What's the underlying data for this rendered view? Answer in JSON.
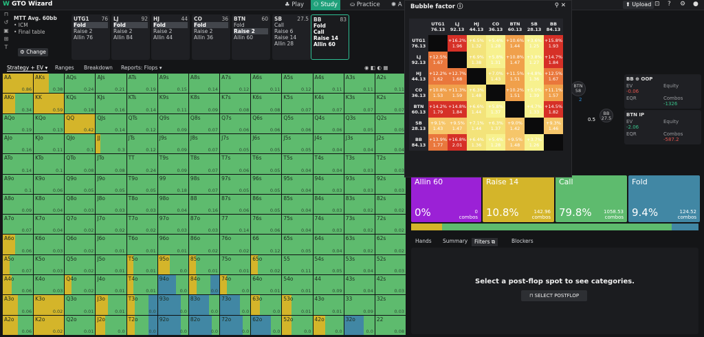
{
  "app": {
    "logo": "GTO Wizard",
    "tabs": [
      "Play",
      "Study",
      "Practice",
      "A"
    ],
    "upload": "Upload"
  },
  "mtt": {
    "title": "MTT  Avg. 60bb",
    "b1": "• ICM",
    "b2": "• Final table",
    "change": "Change"
  },
  "positions": [
    {
      "name": "UTG1",
      "stack": "76",
      "acts": [
        "Fold",
        "Raise 2",
        "Allin 76"
      ],
      "sel": 0
    },
    {
      "name": "LJ",
      "stack": "92",
      "acts": [
        "Fold",
        "Raise 2",
        "Allin 84"
      ],
      "sel": 0
    },
    {
      "name": "HJ",
      "stack": "44",
      "acts": [
        "Fold",
        "Raise 2",
        "Allin 44"
      ],
      "sel": 0
    },
    {
      "name": "CO",
      "stack": "36",
      "acts": [
        "Fold",
        "Raise 2",
        "Allin 36"
      ],
      "sel": 0
    },
    {
      "name": "BTN",
      "stack": "60",
      "acts": [
        "Fold",
        "Raise 2",
        "Allin 60"
      ],
      "sel": 1
    },
    {
      "name": "SB",
      "stack": "27.5",
      "acts": [
        "Call",
        "Raise 6",
        "Raise 14",
        "Allin 28"
      ],
      "sel": -1
    },
    {
      "name": "BB",
      "stack": "83",
      "acts": [
        "Fold",
        "Call",
        "Raise 14",
        "Allin 60"
      ],
      "sel": -1
    }
  ],
  "strategy_tabs": [
    "Strategy + EV ▾",
    "Ranges",
    "Breakdown",
    "Reports: Flops ▾"
  ],
  "grid": [
    [
      "AA",
      "0.86",
      "y1"
    ],
    [
      "AKs",
      "0.38",
      "y5"
    ],
    [
      "AQs",
      "0.24",
      ""
    ],
    [
      "AJs",
      "0.21",
      ""
    ],
    [
      "ATs",
      "0.19",
      ""
    ],
    [
      "A9s",
      "0.15",
      ""
    ],
    [
      "A8s",
      "0.14",
      ""
    ],
    [
      "A7s",
      "0.12",
      ""
    ],
    [
      "A6s",
      "0.11",
      ""
    ],
    [
      "A5s",
      "0.12",
      ""
    ],
    [
      "A4s",
      "0.11",
      ""
    ],
    [
      "A3s",
      "0.11",
      ""
    ],
    [
      "A2s",
      "0.11",
      ""
    ],
    [
      "AKo",
      "0.34",
      "y4"
    ],
    [
      "KK",
      "0.59",
      "y1"
    ],
    [
      "KQs",
      "0.18",
      ""
    ],
    [
      "KJs",
      "0.16",
      ""
    ],
    [
      "KTs",
      "0.14",
      ""
    ],
    [
      "K9s",
      "0.11",
      ""
    ],
    [
      "K8s",
      "0.09",
      ""
    ],
    [
      "K7s",
      "0.08",
      ""
    ],
    [
      "K6s",
      "0.08",
      ""
    ],
    [
      "K5s",
      "0.07",
      ""
    ],
    [
      "K4s",
      "0.07",
      ""
    ],
    [
      "K3s",
      "0.07",
      ""
    ],
    [
      "K2s",
      "0.07",
      ""
    ],
    [
      "AQo",
      "0.19",
      ""
    ],
    [
      "KQo",
      "0.13",
      ""
    ],
    [
      "QQ",
      "0.42",
      "y1"
    ],
    [
      "QJs",
      "0.14",
      ""
    ],
    [
      "QTs",
      "0.12",
      ""
    ],
    [
      "Q9s",
      "0.09",
      ""
    ],
    [
      "Q8s",
      "0.07",
      ""
    ],
    [
      "Q7s",
      "0.06",
      ""
    ],
    [
      "Q6s",
      "0.06",
      ""
    ],
    [
      "Q5s",
      "0.06",
      ""
    ],
    [
      "Q4s",
      "0.06",
      ""
    ],
    [
      "Q3s",
      "0.05",
      ""
    ],
    [
      "Q2s",
      "0.05",
      ""
    ],
    [
      "AJo",
      "0.16",
      ""
    ],
    [
      "KJo",
      "0.11",
      ""
    ],
    [
      "QJo",
      "0.1",
      ""
    ],
    [
      "JJ",
      "0.3",
      "y7"
    ],
    [
      "JTs",
      "0.12",
      ""
    ],
    [
      "J9s",
      "0.09",
      ""
    ],
    [
      "J8s",
      "0.07",
      ""
    ],
    [
      "J7s",
      "0.05",
      ""
    ],
    [
      "J6s",
      "0.05",
      ""
    ],
    [
      "J5s",
      "0.05",
      ""
    ],
    [
      "J4s",
      "0.04",
      ""
    ],
    [
      "J3s",
      "0.04",
      ""
    ],
    [
      "J2s",
      "0.04",
      ""
    ],
    [
      "ATo",
      "0.14",
      ""
    ],
    [
      "KTo",
      "0.1",
      ""
    ],
    [
      "QTo",
      "0.08",
      ""
    ],
    [
      "JTo",
      "0.08",
      ""
    ],
    [
      "TT",
      "0.24",
      ""
    ],
    [
      "T9s",
      "0.09",
      ""
    ],
    [
      "T8s",
      "0.07",
      ""
    ],
    [
      "T7s",
      "0.06",
      ""
    ],
    [
      "T6s",
      "0.05",
      ""
    ],
    [
      "T5s",
      "0.04",
      ""
    ],
    [
      "T4s",
      "0.04",
      ""
    ],
    [
      "T3s",
      "0.03",
      ""
    ],
    [
      "T2s",
      "0.03",
      ""
    ],
    [
      "A9o",
      "0.1",
      ""
    ],
    [
      "K9o",
      "0.06",
      ""
    ],
    [
      "Q9o",
      "0.05",
      ""
    ],
    [
      "J9o",
      "0.05",
      ""
    ],
    [
      "T9o",
      "0.05",
      ""
    ],
    [
      "99",
      "0.18",
      ""
    ],
    [
      "98s",
      "0.07",
      ""
    ],
    [
      "97s",
      "0.05",
      ""
    ],
    [
      "96s",
      "0.05",
      ""
    ],
    [
      "95s",
      "0.04",
      ""
    ],
    [
      "94s",
      "0.03",
      ""
    ],
    [
      "93s",
      "0.03",
      ""
    ],
    [
      "92s",
      "0.03",
      ""
    ],
    [
      "A8o",
      "0.09",
      ""
    ],
    [
      "K8o",
      "0.04",
      ""
    ],
    [
      "Q8o",
      "0.03",
      ""
    ],
    [
      "J8o",
      "0.03",
      ""
    ],
    [
      "T8o",
      "0.03",
      ""
    ],
    [
      "98o",
      "0.04",
      ""
    ],
    [
      "88",
      "0.16",
      ""
    ],
    [
      "87s",
      "0.06",
      ""
    ],
    [
      "86s",
      "0.05",
      ""
    ],
    [
      "85s",
      "0.04",
      ""
    ],
    [
      "84s",
      "0.03",
      ""
    ],
    [
      "83s",
      "0.02",
      ""
    ],
    [
      "82s",
      "0.02",
      ""
    ],
    [
      "A7o",
      "0.07",
      ""
    ],
    [
      "K7o",
      "0.04",
      ""
    ],
    [
      "Q7o",
      "0.02",
      ""
    ],
    [
      "J7o",
      "0.02",
      ""
    ],
    [
      "T7o",
      "0.02",
      ""
    ],
    [
      "97o",
      "0.03",
      ""
    ],
    [
      "87o",
      "0.03",
      ""
    ],
    [
      "77",
      "0.14",
      ""
    ],
    [
      "76s",
      "0.06",
      ""
    ],
    [
      "75s",
      "0.04",
      ""
    ],
    [
      "74s",
      "0.03",
      ""
    ],
    [
      "73s",
      "0.02",
      ""
    ],
    [
      "72s",
      "0.02",
      ""
    ],
    [
      "A6o",
      "0.06",
      "y4"
    ],
    [
      "K6o",
      "0.03",
      ""
    ],
    [
      "Q6o",
      "0.02",
      ""
    ],
    [
      "J6o",
      "0.01",
      ""
    ],
    [
      "T6o",
      "0.01",
      ""
    ],
    [
      "96o",
      "0.01",
      ""
    ],
    [
      "86o",
      "0.02",
      ""
    ],
    [
      "76o",
      "0.02",
      ""
    ],
    [
      "66",
      "0.12",
      ""
    ],
    [
      "65s",
      "0.05",
      ""
    ],
    [
      "64s",
      "0.04",
      ""
    ],
    [
      "63s",
      "0.02",
      ""
    ],
    [
      "62s",
      "0.02",
      ""
    ],
    [
      "A5o",
      "0.07",
      "y2"
    ],
    [
      "K5o",
      "0.03",
      ""
    ],
    [
      "Q5o",
      "0.02",
      ""
    ],
    [
      "J5o",
      "0.01",
      ""
    ],
    [
      "T5o",
      "0.01",
      "y2"
    ],
    [
      "95o",
      "0.0",
      "y4"
    ],
    [
      "85o",
      "0.01",
      "y2"
    ],
    [
      "75o",
      "0.01",
      ""
    ],
    [
      "65o",
      "0.02",
      "y2"
    ],
    [
      "55",
      "0.11",
      ""
    ],
    [
      "54s",
      "0.05",
      ""
    ],
    [
      "53s",
      "0.04",
      ""
    ],
    [
      "52s",
      "0.03",
      ""
    ],
    [
      "A4o",
      "0.06",
      "y3"
    ],
    [
      "K4o",
      "0.03",
      ""
    ],
    [
      "Q4o",
      "0.02",
      "y2"
    ],
    [
      "J4o",
      "0.01",
      ""
    ],
    [
      "T4o",
      "0.01",
      "y2"
    ],
    [
      "94o",
      "0.0",
      "b5"
    ],
    [
      "84o",
      "0.0",
      "yb"
    ],
    [
      "74o",
      "0.0",
      "y2"
    ],
    [
      "64o",
      "0.01",
      ""
    ],
    [
      "54o",
      "0.01",
      ""
    ],
    [
      "44",
      "0.09",
      ""
    ],
    [
      "43s",
      "0.04",
      ""
    ],
    [
      "42s",
      "0.03",
      ""
    ],
    [
      "A3o",
      "0.06",
      "y5"
    ],
    [
      "K3o",
      "0.02",
      "y1"
    ],
    [
      "Q3o",
      "0.01",
      ""
    ],
    [
      "J3o",
      "0.01",
      "y4"
    ],
    [
      "T3o",
      "0.0",
      "yb"
    ],
    [
      "93o",
      "0.0",
      "b7"
    ],
    [
      "83o",
      "0.0",
      "b6"
    ],
    [
      "73o",
      "0.0",
      "b6"
    ],
    [
      "63o",
      "0.0",
      "y3"
    ],
    [
      "53o",
      "0.01",
      "y3"
    ],
    [
      "43o",
      "0.01",
      ""
    ],
    [
      "33",
      "0.09",
      ""
    ],
    [
      "32s",
      "0.03",
      ""
    ],
    [
      "A2o",
      "0.06",
      "y5"
    ],
    [
      "K2o",
      "0.02",
      "y1"
    ],
    [
      "Q2o",
      "0.01",
      ""
    ],
    [
      "J2o",
      "0.0",
      "y3"
    ],
    [
      "T2o",
      "0.0",
      "yb"
    ],
    [
      "92o",
      "0.0",
      "b7"
    ],
    [
      "82o",
      "0.0",
      "b7"
    ],
    [
      "72o",
      "0.0",
      "b7"
    ],
    [
      "62o",
      "0.0",
      "b6"
    ],
    [
      "52o",
      "0.0",
      "y3"
    ],
    [
      "42o",
      "0.0",
      "y4"
    ],
    [
      "32o",
      "0.0",
      "b6"
    ],
    [
      "22",
      "0.08",
      ""
    ]
  ],
  "bubble": {
    "title": "Bubble factor ⓘ",
    "cols": [
      [
        "UTG1",
        "76.13"
      ],
      [
        "LJ",
        "92.13"
      ],
      [
        "HJ",
        "44.13"
      ],
      [
        "CO",
        "36.13"
      ],
      [
        "BTN",
        "60.13"
      ],
      [
        "SB",
        "28.13"
      ],
      [
        "BB",
        "84.13"
      ]
    ],
    "rows": [
      [
        [
          "",
          ""
        ],
        [
          "+16.2%",
          "1.96"
        ],
        [
          "+6.5%",
          "1.32"
        ],
        [
          "+5.4%",
          "1.28"
        ],
        [
          "+10.6%",
          "1.44"
        ],
        [
          "+3.6%",
          "1.25"
        ],
        [
          "+15.8%",
          "1.93"
        ]
      ],
      [
        [
          "+12.5%",
          "1.67"
        ],
        [
          "",
          ""
        ],
        [
          "+6.9%",
          "1.38"
        ],
        [
          "+5.8%",
          "1.31"
        ],
        [
          "+10.8%",
          "1.47"
        ],
        [
          "+3.8%",
          "1.27"
        ],
        [
          "+14.7%",
          "1.84"
        ]
      ],
      [
        [
          "+12.2%",
          "1.62"
        ],
        [
          "+12.7%",
          "1.68"
        ],
        [
          "",
          ""
        ],
        [
          "+7.0%",
          "1.43"
        ],
        [
          "+11.5%",
          "1.51"
        ],
        [
          "+4.8%",
          "1.36"
        ],
        [
          "+12.5%",
          "1.67"
        ]
      ],
      [
        [
          "+10.8%",
          "1.53"
        ],
        [
          "+11.3%",
          "1.59"
        ],
        [
          "+6.3%",
          "1.48"
        ],
        [
          "",
          ""
        ],
        [
          "+10.2%",
          "1.51"
        ],
        [
          "+5.0%",
          "1.39"
        ],
        [
          "+11.1%",
          "1.57"
        ]
      ],
      [
        [
          "+14.2%",
          "1.79"
        ],
        [
          "+14.8%",
          "1.84"
        ],
        [
          "+6.6%",
          "1.44"
        ],
        [
          "+5.8%",
          "1.37"
        ],
        [
          "",
          ""
        ],
        [
          "+4.7%",
          "1.33"
        ],
        [
          "+14.5%",
          "1.82"
        ]
      ],
      [
        [
          "+9.1%",
          "1.43"
        ],
        [
          "+9.5%",
          "1.47"
        ],
        [
          "+7.1%",
          "1.44"
        ],
        [
          "+6.3%",
          "1.37"
        ],
        [
          "+9.0%",
          "1.42"
        ],
        [
          "",
          ""
        ],
        [
          "+9.3%",
          "1.46"
        ]
      ],
      [
        [
          "+13.9%",
          "1.77"
        ],
        [
          "+16.8%",
          "2.01"
        ],
        [
          "+6.4%",
          "1.36"
        ],
        [
          "+5.4%",
          "1.28"
        ],
        [
          "+9.5%",
          "1.48"
        ],
        [
          "+3.7%",
          "1.26"
        ],
        [
          "",
          ""
        ]
      ]
    ]
  },
  "table": {
    "btn": "BTN 58",
    "bb": "BB 27.5",
    "pot": "0.5",
    "chips": "2"
  },
  "oop": {
    "title": "BB ⊕ OOP",
    "ev_l": "EV",
    "ev": "-0.06",
    "eq_l": "Equity",
    "egr_l": "EQR",
    "cb_l": "Combos",
    "cb": "-1326"
  },
  "ip": {
    "title": "BTN IP",
    "ev_l": "EV",
    "ev": "-2.06",
    "eq_l": "Equity",
    "egr_l": "EQR",
    "cb_l": "Combos",
    "cb": "-587.2"
  },
  "actions": [
    {
      "name": "Allin 60",
      "pct": "0%",
      "combos": "0",
      "label": "combos",
      "color": "#9b21d6"
    },
    {
      "name": "Raise 14",
      "pct": "10.8%",
      "combos": "142.96",
      "label": "combos",
      "color": "#d4b52a"
    },
    {
      "name": "Call",
      "pct": "79.8%",
      "combos": "1058.53",
      "label": "combos",
      "color": "#5ebb6e"
    },
    {
      "name": "Fold",
      "pct": "9.4%",
      "combos": "124.52",
      "label": "combos",
      "color": "#4187a4"
    }
  ],
  "freq": [
    {
      "c": "#d4b52a",
      "w": 10.8
    },
    {
      "c": "#5ebb6e",
      "w": 79.8
    },
    {
      "c": "#4187a4",
      "w": 9.4
    }
  ],
  "lowtabs": [
    "Hands",
    "Summary",
    "Filters ⧉",
    "Blockers"
  ],
  "panel": {
    "msg": "Select a post-flop spot to see categories.",
    "btn": "SELECT POSTFLOP"
  }
}
